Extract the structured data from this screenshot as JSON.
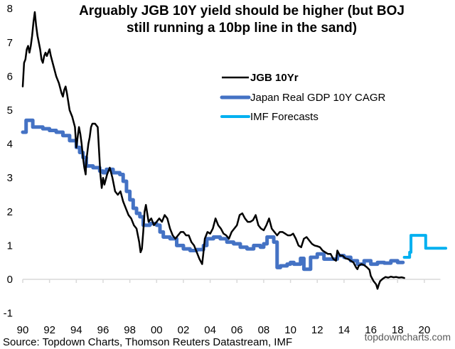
{
  "chart_data": {
    "type": "line",
    "title_lines": [
      "Arguably JGB 10Y yield should be higher (but BOJ",
      "still running a 10bp line in the sand)"
    ],
    "xlabel": "",
    "ylabel": "",
    "xlim": [
      1990,
      2021.2
    ],
    "ylim": [
      -1,
      8
    ],
    "x_ticks": [
      1990,
      1992,
      1994,
      1996,
      1998,
      2000,
      2002,
      2004,
      2006,
      2008,
      2010,
      2012,
      2014,
      2016,
      2018,
      2020
    ],
    "x_tick_labels": [
      "90",
      "92",
      "94",
      "96",
      "98",
      "00",
      "02",
      "04",
      "06",
      "08",
      "10",
      "12",
      "14",
      "16",
      "18",
      "20"
    ],
    "y_ticks": [
      -1,
      0,
      1,
      2,
      3,
      4,
      5,
      6,
      7,
      8
    ],
    "y_tick_labels": [
      "-1",
      "0",
      "1",
      "2",
      "3",
      "4",
      "5",
      "6",
      "7",
      "8"
    ],
    "grid": false,
    "legend_position": "upper-center-right",
    "legend": [
      "JGB 10Yr",
      "Japan Real GDP 10Y CAGR",
      "IMF Forecasts"
    ],
    "series": [
      {
        "name": "JGB 10Yr",
        "color": "#000000",
        "style": "line",
        "points": [
          [
            1990.0,
            5.7
          ],
          [
            1990.1,
            6.4
          ],
          [
            1990.2,
            6.5
          ],
          [
            1990.3,
            6.8
          ],
          [
            1990.4,
            6.9
          ],
          [
            1990.5,
            6.7
          ],
          [
            1990.6,
            6.9
          ],
          [
            1990.7,
            7.2
          ],
          [
            1990.8,
            7.6
          ],
          [
            1990.9,
            7.9
          ],
          [
            1991.0,
            7.5
          ],
          [
            1991.1,
            7.2
          ],
          [
            1991.2,
            7.0
          ],
          [
            1991.3,
            6.8
          ],
          [
            1991.4,
            6.5
          ],
          [
            1991.5,
            6.4
          ],
          [
            1991.6,
            6.6
          ],
          [
            1991.7,
            6.7
          ],
          [
            1991.8,
            6.6
          ],
          [
            1991.9,
            6.7
          ],
          [
            1992.0,
            6.8
          ],
          [
            1992.1,
            6.6
          ],
          [
            1992.3,
            6.3
          ],
          [
            1992.5,
            6.0
          ],
          [
            1992.7,
            5.8
          ],
          [
            1992.9,
            5.5
          ],
          [
            1993.0,
            5.4
          ],
          [
            1993.1,
            5.6
          ],
          [
            1993.2,
            5.7
          ],
          [
            1993.3,
            5.5
          ],
          [
            1993.5,
            5.0
          ],
          [
            1993.7,
            4.8
          ],
          [
            1993.9,
            4.5
          ],
          [
            1994.0,
            3.9
          ],
          [
            1994.1,
            4.2
          ],
          [
            1994.2,
            4.5
          ],
          [
            1994.3,
            4.3
          ],
          [
            1994.4,
            4.0
          ],
          [
            1994.5,
            3.6
          ],
          [
            1994.6,
            3.3
          ],
          [
            1994.7,
            3.1
          ],
          [
            1994.75,
            3.5
          ],
          [
            1994.9,
            4.0
          ],
          [
            1995.0,
            4.2
          ],
          [
            1995.1,
            4.5
          ],
          [
            1995.2,
            4.6
          ],
          [
            1995.4,
            4.6
          ],
          [
            1995.6,
            4.5
          ],
          [
            1995.7,
            3.8
          ],
          [
            1995.8,
            3.1
          ],
          [
            1995.9,
            2.7
          ],
          [
            1996.0,
            3.0
          ],
          [
            1996.1,
            2.8
          ],
          [
            1996.3,
            3.1
          ],
          [
            1996.5,
            3.3
          ],
          [
            1996.7,
            3.0
          ],
          [
            1996.9,
            2.6
          ],
          [
            1997.1,
            2.5
          ],
          [
            1997.3,
            2.6
          ],
          [
            1997.5,
            2.3
          ],
          [
            1997.7,
            2.1
          ],
          [
            1997.9,
            1.9
          ],
          [
            1998.1,
            1.8
          ],
          [
            1998.3,
            1.6
          ],
          [
            1998.5,
            1.5
          ],
          [
            1998.7,
            1.1
          ],
          [
            1998.8,
            0.8
          ],
          [
            1998.9,
            0.9
          ],
          [
            1999.0,
            1.4
          ],
          [
            1999.1,
            2.0
          ],
          [
            1999.2,
            2.2
          ],
          [
            1999.4,
            1.7
          ],
          [
            1999.6,
            1.8
          ],
          [
            1999.8,
            1.6
          ],
          [
            2000.0,
            1.7
          ],
          [
            2000.2,
            1.8
          ],
          [
            2000.4,
            1.7
          ],
          [
            2000.6,
            1.9
          ],
          [
            2000.8,
            1.8
          ],
          [
            2001.0,
            1.5
          ],
          [
            2001.2,
            1.3
          ],
          [
            2001.4,
            1.2
          ],
          [
            2001.6,
            1.3
          ],
          [
            2001.8,
            1.4
          ],
          [
            2002.0,
            1.4
          ],
          [
            2002.2,
            1.3
          ],
          [
            2002.4,
            1.3
          ],
          [
            2002.6,
            1.1
          ],
          [
            2002.8,
            1.0
          ],
          [
            2003.0,
            0.8
          ],
          [
            2003.2,
            0.6
          ],
          [
            2003.4,
            0.45
          ],
          [
            2003.5,
            0.8
          ],
          [
            2003.6,
            1.2
          ],
          [
            2003.8,
            1.4
          ],
          [
            2004.0,
            1.35
          ],
          [
            2004.2,
            1.5
          ],
          [
            2004.4,
            1.8
          ],
          [
            2004.6,
            1.6
          ],
          [
            2004.8,
            1.5
          ],
          [
            2005.0,
            1.35
          ],
          [
            2005.2,
            1.3
          ],
          [
            2005.4,
            1.2
          ],
          [
            2005.6,
            1.4
          ],
          [
            2005.8,
            1.5
          ],
          [
            2006.0,
            1.6
          ],
          [
            2006.2,
            1.9
          ],
          [
            2006.4,
            1.95
          ],
          [
            2006.6,
            1.8
          ],
          [
            2006.8,
            1.7
          ],
          [
            2007.0,
            1.7
          ],
          [
            2007.2,
            1.75
          ],
          [
            2007.4,
            1.9
          ],
          [
            2007.6,
            1.6
          ],
          [
            2007.8,
            1.5
          ],
          [
            2008.0,
            1.45
          ],
          [
            2008.2,
            1.6
          ],
          [
            2008.4,
            1.8
          ],
          [
            2008.6,
            1.5
          ],
          [
            2008.8,
            1.4
          ],
          [
            2009.0,
            1.3
          ],
          [
            2009.2,
            1.4
          ],
          [
            2009.4,
            1.4
          ],
          [
            2009.6,
            1.35
          ],
          [
            2009.8,
            1.3
          ],
          [
            2010.0,
            1.3
          ],
          [
            2010.2,
            1.35
          ],
          [
            2010.4,
            1.2
          ],
          [
            2010.6,
            1.0
          ],
          [
            2010.8,
            0.95
          ],
          [
            2011.0,
            1.2
          ],
          [
            2011.2,
            1.25
          ],
          [
            2011.4,
            1.15
          ],
          [
            2011.6,
            1.05
          ],
          [
            2011.8,
            1.0
          ],
          [
            2012.0,
            0.98
          ],
          [
            2012.2,
            0.95
          ],
          [
            2012.4,
            0.85
          ],
          [
            2012.6,
            0.8
          ],
          [
            2012.8,
            0.75
          ],
          [
            2013.0,
            0.75
          ],
          [
            2013.2,
            0.6
          ],
          [
            2013.4,
            0.55
          ],
          [
            2013.5,
            0.85
          ],
          [
            2013.7,
            0.7
          ],
          [
            2013.9,
            0.7
          ],
          [
            2014.1,
            0.62
          ],
          [
            2014.3,
            0.6
          ],
          [
            2014.5,
            0.55
          ],
          [
            2014.7,
            0.5
          ],
          [
            2014.9,
            0.35
          ],
          [
            2015.0,
            0.3
          ],
          [
            2015.1,
            0.4
          ],
          [
            2015.3,
            0.45
          ],
          [
            2015.5,
            0.42
          ],
          [
            2015.7,
            0.36
          ],
          [
            2015.9,
            0.28
          ],
          [
            2016.0,
            0.1
          ],
          [
            2016.2,
            -0.05
          ],
          [
            2016.4,
            -0.15
          ],
          [
            2016.5,
            -0.28
          ],
          [
            2016.6,
            -0.15
          ],
          [
            2016.7,
            -0.05
          ],
          [
            2016.9,
            0.02
          ],
          [
            2017.1,
            0.07
          ],
          [
            2017.3,
            0.05
          ],
          [
            2017.5,
            0.08
          ],
          [
            2017.7,
            0.06
          ],
          [
            2017.9,
            0.07
          ],
          [
            2018.1,
            0.05
          ],
          [
            2018.3,
            0.06
          ],
          [
            2018.5,
            0.04
          ]
        ]
      },
      {
        "name": "Japan Real GDP 10Y CAGR",
        "color": "#4472C4",
        "style": "step",
        "points": [
          [
            1990.0,
            4.35
          ],
          [
            1990.25,
            4.7
          ],
          [
            1990.75,
            4.5
          ],
          [
            1991.5,
            4.45
          ],
          [
            1992.0,
            4.4
          ],
          [
            1992.5,
            4.35
          ],
          [
            1993.0,
            4.25
          ],
          [
            1993.5,
            4.1
          ],
          [
            1994.0,
            3.9
          ],
          [
            1994.25,
            3.75
          ],
          [
            1994.5,
            3.6
          ],
          [
            1994.75,
            3.35
          ],
          [
            1995.25,
            3.3
          ],
          [
            1995.75,
            3.2
          ],
          [
            1996.0,
            3.15
          ],
          [
            1996.25,
            3.25
          ],
          [
            1996.75,
            3.15
          ],
          [
            1997.25,
            3.1
          ],
          [
            1997.5,
            2.9
          ],
          [
            1997.75,
            2.6
          ],
          [
            1998.0,
            2.35
          ],
          [
            1998.25,
            2.1
          ],
          [
            1998.5,
            1.95
          ],
          [
            1998.75,
            1.85
          ],
          [
            1999.0,
            1.6
          ],
          [
            1999.5,
            1.65
          ],
          [
            2000.0,
            1.6
          ],
          [
            2000.25,
            1.4
          ],
          [
            2000.5,
            1.25
          ],
          [
            2001.0,
            1.2
          ],
          [
            2001.5,
            1.0
          ],
          [
            2002.0,
            0.9
          ],
          [
            2002.5,
            0.85
          ],
          [
            2003.0,
            0.88
          ],
          [
            2003.5,
            1.0
          ],
          [
            2003.75,
            1.2
          ],
          [
            2004.25,
            1.25
          ],
          [
            2004.75,
            1.2
          ],
          [
            2005.25,
            1.1
          ],
          [
            2005.75,
            1.05
          ],
          [
            2006.25,
            0.95
          ],
          [
            2006.75,
            0.9
          ],
          [
            2007.25,
            1.0
          ],
          [
            2007.75,
            0.95
          ],
          [
            2008.0,
            1.05
          ],
          [
            2008.25,
            1.25
          ],
          [
            2008.75,
            1.1
          ],
          [
            2009.0,
            0.35
          ],
          [
            2009.25,
            0.4
          ],
          [
            2009.75,
            0.45
          ],
          [
            2010.0,
            0.5
          ],
          [
            2010.25,
            0.45
          ],
          [
            2010.75,
            0.62
          ],
          [
            2011.0,
            0.3
          ],
          [
            2011.5,
            0.65
          ],
          [
            2012.0,
            0.75
          ],
          [
            2012.5,
            0.6
          ],
          [
            2013.0,
            0.6
          ],
          [
            2013.5,
            0.7
          ],
          [
            2014.0,
            0.65
          ],
          [
            2014.5,
            0.55
          ],
          [
            2015.0,
            0.45
          ],
          [
            2015.5,
            0.55
          ],
          [
            2016.0,
            0.45
          ],
          [
            2016.5,
            0.5
          ],
          [
            2017.0,
            0.48
          ],
          [
            2017.5,
            0.55
          ],
          [
            2018.0,
            0.5
          ]
        ]
      },
      {
        "name": "IMF Forecasts",
        "color": "#00B0F0",
        "style": "step",
        "points": [
          [
            2018.5,
            0.65
          ],
          [
            2018.9,
            0.8
          ],
          [
            2019.0,
            1.3
          ],
          [
            2020.1,
            0.92
          ],
          [
            2021.2,
            0.92
          ]
        ]
      }
    ],
    "source": "Source: Topdown Charts, Thomson Reuters Datastream, IMF",
    "watermark": "topdowncharts.com"
  }
}
